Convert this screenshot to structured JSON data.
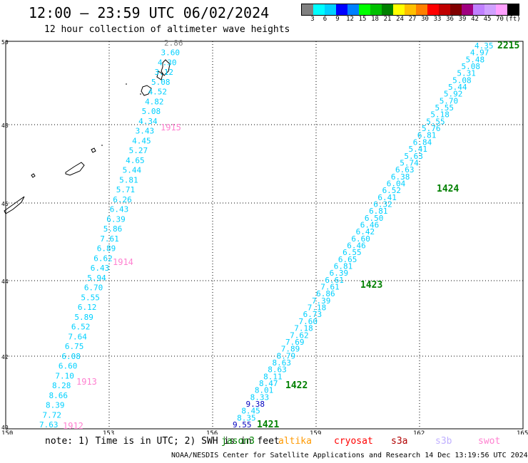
{
  "header": {
    "title": "12:00 – 23:59 UTC 06/02/2024",
    "subtitle": "12 hour collection of altimeter wave heights"
  },
  "scale": {
    "colors": [
      "#808080",
      "#00ffff",
      "#00d0ff",
      "#0000ff",
      "#0080ff",
      "#00ff00",
      "#00c000",
      "#008000",
      "#ffff00",
      "#ffc000",
      "#ff8000",
      "#ff0000",
      "#c00000",
      "#800000",
      "#a00080",
      "#c080ff",
      "#d0a0ff",
      "#ffa0ff",
      "#000000"
    ],
    "labels": [
      "3",
      "6",
      "9",
      "12",
      "15",
      "18",
      "21",
      "24",
      "27",
      "30",
      "33",
      "36",
      "39",
      "42",
      "45",
      "70",
      "(ft)"
    ]
  },
  "axes": {
    "x_ticks": [
      "150",
      "153",
      "156",
      "159",
      "162",
      "165"
    ],
    "y_ticks": [
      "50",
      "48",
      "46",
      "44",
      "42",
      "40"
    ]
  },
  "track_left": {
    "values": [
      "2.86",
      "3.60",
      "4.30",
      "3.12",
      "5.08",
      "4.52",
      "4.82",
      "5.08",
      "4.34",
      "3.43",
      "4.45",
      "5.27",
      "4.65",
      "5.44",
      "5.81",
      "5.71",
      "6.26",
      "6.43",
      "6.39",
      "5.86",
      "7.61",
      "6.89",
      "6.62",
      "6.43",
      "5.94",
      "6.70",
      "5.55",
      "6.12",
      "5.89",
      "6.52",
      "7.64",
      "6.75",
      "6.08",
      "6.60",
      "7.10",
      "8.28",
      "8.66",
      "8.39",
      "7.72",
      "7.63"
    ],
    "times": [
      "1915",
      "1914",
      "1913",
      "1912"
    ]
  },
  "track_right": {
    "values": [
      "9.55",
      "8.35",
      "8.45",
      "9.38",
      "8.33",
      "8.01",
      "8.47",
      "8.11",
      "8.63",
      "8.63",
      "8.79",
      "7.89",
      "7.69",
      "7.62",
      "7.18",
      "7.60",
      "6.73",
      "7.18",
      "7.39",
      "6.86",
      "7.61",
      "6.61",
      "6.39",
      "6.81",
      "6.65",
      "6.55",
      "6.46",
      "6.60",
      "6.42",
      "6.46",
      "6.50",
      "6.81",
      "6.32",
      "6.41",
      "6.52",
      "6.04",
      "6.38",
      "6.63",
      "5.74",
      "5.63",
      "5.41",
      "6.84",
      "6.81",
      "5.76",
      "5.55",
      "5.18",
      "5.55",
      "5.70",
      "5.92",
      "5.44",
      "5.08",
      "5.31",
      "5.08",
      "5.48",
      "4.97",
      "4.35"
    ],
    "times": [
      "1421",
      "1422",
      "1423",
      "1424",
      "2215"
    ]
  },
  "note": "note: 1) Time is in UTC; 2) SWH is in feet",
  "satellites": [
    {
      "name": "jason3",
      "color": "#008000"
    },
    {
      "name": "altika",
      "color": "#ff9900"
    },
    {
      "name": "cryosat",
      "color": "#ff0000"
    },
    {
      "name": "s3a",
      "color": "#b00000"
    },
    {
      "name": "s3b",
      "color": "#c0b0ff"
    },
    {
      "name": "swot",
      "color": "#ff80d0"
    }
  ],
  "footer": "NOAA/NESDIS Center for Satellite Applications and Research   14 Dec 13:19:56 UTC 2024"
}
